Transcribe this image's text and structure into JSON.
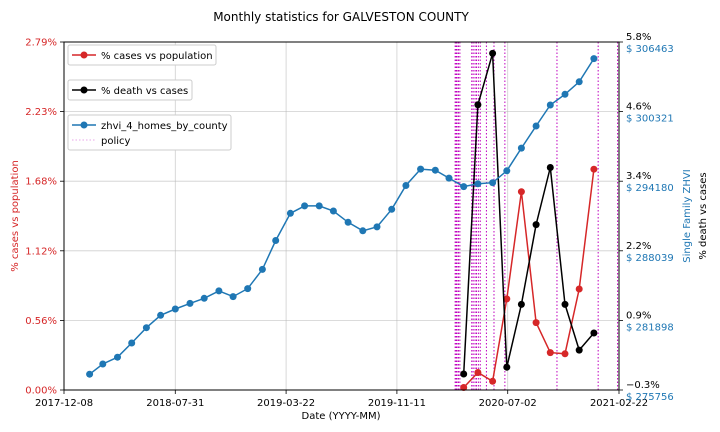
{
  "chart_data": {
    "type": "line",
    "title": "Monthly statistics for GALVESTON COUNTY",
    "xlabel": "Date (YYYY-MM)",
    "ylabel_left": "% cases vs population",
    "ylabel_right_inner": "Single Family ZHVI",
    "ylabel_right_outer": "% death vs cases",
    "x_ticks": [
      "2017-12-08",
      "2018-07-31",
      "2019-03-22",
      "2019-11-11",
      "2020-07-02",
      "2021-02-22"
    ],
    "y_left_ticks": [
      "0.00%",
      "0.56%",
      "1.12%",
      "1.68%",
      "2.23%",
      "2.79%"
    ],
    "y_left_range": [
      0,
      2.79
    ],
    "y_zhvi_ticks": [
      "$ 275756",
      "$ 281898",
      "$ 288039",
      "$ 294180",
      "$ 300321",
      "$ 306463"
    ],
    "y_zhvi_range": [
      275756,
      306463
    ],
    "y_death_ticks": [
      "−0.3%",
      "0.9%",
      "2.2%",
      "3.4%",
      "4.6%",
      "5.8%"
    ],
    "y_death_range": [
      -0.3,
      5.8
    ],
    "grid": true,
    "legend_position": "top-left",
    "colors": {
      "cases": "#d62728",
      "death": "#000000",
      "zhvi": "#1f77b4",
      "policy": "#bf00bf",
      "left_axis": "#d62728",
      "zhvi_axis": "#1f77b4",
      "death_axis": "#000000"
    },
    "series": [
      {
        "name": "% cases vs population",
        "axis": "left",
        "x": [
          "2020-03-31",
          "2020-04-30",
          "2020-05-31",
          "2020-06-30",
          "2020-07-31",
          "2020-08-31",
          "2020-09-30",
          "2020-10-31",
          "2020-11-30",
          "2020-12-31",
          "2021-01-31"
        ],
        "values": [
          0.02,
          0.14,
          0.07,
          0.73,
          1.59,
          0.54,
          0.3,
          0.29,
          0.81,
          1.77,
          null
        ]
      },
      {
        "name": "% death vs cases",
        "axis": "right_outer",
        "x": [
          "2020-03-31",
          "2020-04-30",
          "2020-05-31",
          "2020-06-30",
          "2020-07-31",
          "2020-08-31",
          "2020-09-30",
          "2020-10-31",
          "2020-11-30",
          "2020-12-31",
          "2021-01-31"
        ],
        "values": [
          -0.02,
          4.7,
          5.6,
          0.1,
          1.2,
          2.6,
          3.6,
          1.2,
          0.4,
          0.7,
          null
        ]
      },
      {
        "name": "zhvi_4_homes_by_county",
        "axis": "right_inner",
        "x": [
          "2018-01-31",
          "2018-02-28",
          "2018-03-31",
          "2018-04-30",
          "2018-05-31",
          "2018-06-30",
          "2018-07-31",
          "2018-08-31",
          "2018-09-30",
          "2018-10-31",
          "2018-11-30",
          "2018-12-31",
          "2019-01-31",
          "2019-02-28",
          "2019-03-31",
          "2019-04-30",
          "2019-05-31",
          "2019-06-30",
          "2019-07-31",
          "2019-08-31",
          "2019-09-30",
          "2019-10-31",
          "2019-11-30",
          "2019-12-31",
          "2020-01-31",
          "2020-02-29",
          "2020-03-31",
          "2020-04-30",
          "2020-05-31",
          "2020-06-30",
          "2020-07-31",
          "2020-08-31",
          "2020-09-30",
          "2020-10-31",
          "2020-11-30",
          "2020-12-31"
        ],
        "values": [
          277150,
          278050,
          278650,
          279900,
          281250,
          282350,
          282900,
          283400,
          283850,
          284500,
          284000,
          284700,
          286400,
          288950,
          291350,
          292000,
          292000,
          291550,
          290550,
          289800,
          290150,
          291700,
          293800,
          295250,
          295150,
          294450,
          293700,
          293950,
          294050,
          295100,
          297100,
          299050,
          300900,
          301850,
          302950,
          305000
        ]
      }
    ],
    "policy_lines": [
      "2020-03-13",
      "2020-03-15",
      "2020-03-16",
      "2020-03-19",
      "2020-03-20",
      "2020-03-23",
      "2020-04-17",
      "2020-04-20",
      "2020-04-24",
      "2020-04-27",
      "2020-05-01",
      "2020-05-05",
      "2020-05-18",
      "2020-06-03",
      "2020-06-26",
      "2020-10-14",
      "2021-01-09",
      "2021-02-19"
    ],
    "legend": [
      {
        "label": "% cases vs population"
      },
      {
        "label": "% death vs cases"
      },
      {
        "label": "zhvi_4_homes_by_county"
      },
      {
        "label": "policy"
      }
    ]
  }
}
